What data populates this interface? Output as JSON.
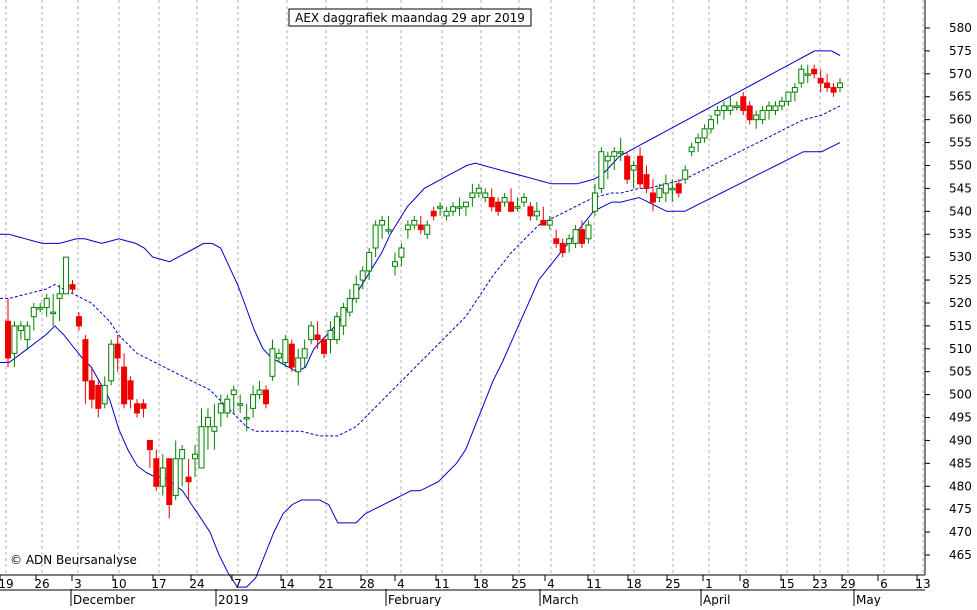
{
  "chart_data": {
    "type": "candlestick",
    "title": "AEX daggrafiek maandag 29 apr 2019",
    "copyright": "© ADN Beursanalyse",
    "y_axis": {
      "side": "right",
      "ylim": [
        460,
        583
      ],
      "ticks": [
        465,
        470,
        475,
        480,
        485,
        490,
        495,
        500,
        505,
        510,
        515,
        520,
        525,
        530,
        535,
        540,
        545,
        550,
        555,
        560,
        565,
        570,
        575,
        580
      ]
    },
    "x_axis": {
      "day_ticks": [
        "19",
        "26",
        "3",
        "10",
        "17",
        "24",
        "7",
        "14",
        "21",
        "28",
        "4",
        "11",
        "18",
        "25",
        "4",
        "11",
        "18",
        "25",
        "1",
        "8",
        "15",
        "23",
        "29",
        "6",
        "13"
      ],
      "month_labels": [
        "December",
        "2019",
        "February",
        "March",
        "April",
        "May"
      ]
    },
    "colors": {
      "up": "#008000",
      "down": "#ee0000",
      "bands": "#0000cc",
      "grid": "#b0b0b0"
    },
    "candles": [
      [
        516,
        521,
        506,
        508
      ],
      [
        509,
        516,
        506,
        515
      ],
      [
        514,
        516,
        512,
        515
      ],
      [
        512,
        516,
        510,
        515
      ],
      [
        517,
        520,
        514,
        519
      ],
      [
        519,
        520,
        518,
        519
      ],
      [
        519,
        522,
        517,
        521
      ],
      [
        518,
        522,
        515,
        518
      ],
      [
        521,
        524,
        516,
        522
      ],
      [
        522,
        529,
        522,
        530
      ],
      [
        524,
        525,
        522,
        523
      ],
      [
        517,
        518,
        514,
        515
      ],
      [
        512,
        513,
        498,
        503
      ],
      [
        503,
        506,
        497,
        499
      ],
      [
        502,
        503,
        495,
        497
      ],
      [
        498,
        504,
        497,
        502
      ],
      [
        503,
        512,
        502,
        511
      ],
      [
        511,
        513,
        505,
        508
      ],
      [
        506,
        509,
        497,
        498
      ],
      [
        503,
        504,
        497,
        499
      ],
      [
        498,
        499,
        495,
        496
      ],
      [
        498,
        499,
        495,
        497
      ],
      [
        490,
        489,
        484,
        488
      ],
      [
        486,
        488,
        479,
        480
      ],
      [
        480,
        487,
        478,
        484
      ],
      [
        486,
        486,
        473,
        476
      ],
      [
        478,
        490,
        477,
        486
      ],
      [
        486,
        489,
        480,
        488
      ],
      [
        482,
        486,
        477,
        481
      ],
      [
        486,
        489,
        482,
        487
      ],
      [
        484,
        497,
        484,
        493
      ],
      [
        493,
        497,
        488,
        495
      ],
      [
        492,
        498,
        488,
        493
      ],
      [
        496,
        500,
        493,
        498
      ],
      [
        496,
        500,
        495,
        499
      ],
      [
        500,
        502,
        496,
        501
      ],
      [
        498,
        500,
        496,
        498
      ],
      [
        495,
        498,
        492,
        495
      ],
      [
        497,
        502,
        495,
        500
      ],
      [
        500,
        503,
        499,
        501
      ],
      [
        501,
        502,
        497,
        498
      ],
      [
        504,
        512,
        503,
        510
      ],
      [
        508,
        510,
        507,
        509
      ],
      [
        507,
        513,
        506,
        512
      ],
      [
        511,
        512,
        505,
        506
      ],
      [
        505,
        510,
        502,
        508
      ],
      [
        508,
        512,
        506,
        510
      ],
      [
        512,
        516,
        511,
        515
      ],
      [
        513,
        516,
        510,
        512
      ],
      [
        512,
        512,
        508,
        509
      ],
      [
        512,
        516,
        509,
        514
      ],
      [
        512,
        518,
        511,
        517
      ],
      [
        515,
        520,
        513,
        519
      ],
      [
        518,
        523,
        517,
        521
      ],
      [
        521,
        526,
        520,
        524
      ],
      [
        525,
        528,
        523,
        527
      ],
      [
        527,
        532,
        525,
        531
      ],
      [
        532,
        538,
        530,
        537
      ],
      [
        537,
        539,
        534,
        538
      ],
      [
        536,
        539,
        535,
        536
      ],
      [
        528,
        531,
        526,
        529
      ],
      [
        530,
        533,
        528,
        532
      ],
      [
        536,
        538,
        534,
        537
      ],
      [
        537,
        539,
        536,
        538
      ],
      [
        537,
        539,
        535,
        536
      ],
      [
        535,
        538,
        534,
        537
      ],
      [
        540,
        541,
        538,
        539
      ],
      [
        541,
        542,
        539,
        541
      ],
      [
        539,
        541,
        538,
        540
      ],
      [
        540,
        542,
        539,
        541
      ],
      [
        541,
        543,
        539,
        541
      ],
      [
        541,
        542,
        539,
        542
      ],
      [
        543,
        546,
        541,
        544
      ],
      [
        544,
        546,
        543,
        545
      ],
      [
        543,
        545,
        542,
        544
      ],
      [
        543,
        545,
        540,
        541
      ],
      [
        542,
        543,
        539,
        540
      ],
      [
        542,
        544,
        541,
        543
      ],
      [
        542,
        545,
        541,
        540
      ],
      [
        541,
        543,
        540,
        541
      ],
      [
        542,
        544,
        541,
        543
      ],
      [
        541,
        542,
        538,
        539
      ],
      [
        539,
        542,
        538,
        540
      ],
      [
        538,
        541,
        537,
        537
      ],
      [
        537,
        539,
        536,
        538
      ],
      [
        534,
        536,
        532,
        533
      ],
      [
        533,
        534,
        530,
        531
      ],
      [
        533,
        535,
        531,
        534
      ],
      [
        533,
        537,
        532,
        536
      ],
      [
        536,
        538,
        532,
        533
      ],
      [
        534,
        538,
        533,
        537
      ],
      [
        540,
        546,
        539,
        544
      ],
      [
        545,
        554,
        544,
        553
      ],
      [
        551,
        553,
        547,
        552
      ],
      [
        552,
        554,
        549,
        553
      ],
      [
        553,
        556,
        551,
        553
      ],
      [
        552,
        553,
        546,
        547
      ],
      [
        549,
        551,
        545,
        550
      ],
      [
        552,
        554,
        545,
        546
      ],
      [
        548,
        550,
        544,
        545
      ],
      [
        544,
        547,
        540,
        542
      ],
      [
        543,
        546,
        542,
        545
      ],
      [
        544,
        548,
        542,
        546
      ],
      [
        545,
        547,
        542,
        545
      ],
      [
        546,
        547,
        543,
        544
      ],
      [
        547,
        550,
        546,
        549
      ],
      [
        553,
        555,
        552,
        554
      ],
      [
        555,
        557,
        553,
        556
      ],
      [
        556,
        559,
        555,
        558
      ],
      [
        558,
        561,
        557,
        560
      ],
      [
        561,
        563,
        559,
        562
      ],
      [
        562,
        564,
        560,
        563
      ],
      [
        562,
        565,
        561,
        563
      ],
      [
        563,
        564,
        562,
        563
      ],
      [
        565,
        566,
        561,
        562
      ],
      [
        563,
        564,
        559,
        560
      ],
      [
        560,
        562,
        558,
        561
      ],
      [
        560,
        563,
        559,
        562
      ],
      [
        562,
        564,
        560,
        563
      ],
      [
        562,
        564,
        561,
        563
      ],
      [
        563,
        565,
        562,
        564
      ],
      [
        564,
        566,
        563,
        566
      ],
      [
        566,
        568,
        564,
        567
      ],
      [
        568,
        572,
        567,
        571
      ],
      [
        570,
        572,
        568,
        570
      ],
      [
        571,
        572,
        569,
        570
      ],
      [
        569,
        571,
        566,
        568
      ],
      [
        568,
        570,
        566,
        567
      ],
      [
        567,
        568,
        565,
        566
      ],
      [
        567,
        569,
        566,
        568
      ]
    ],
    "middle_band": [
      521,
      521,
      521.5,
      522,
      522.5,
      523,
      524,
      523,
      522,
      521,
      520,
      518,
      516,
      513,
      511,
      509,
      508,
      507,
      506,
      505,
      504,
      503,
      502,
      501,
      499,
      497,
      495,
      493,
      492,
      492,
      492,
      492,
      492,
      492,
      491.5,
      491,
      491,
      491,
      492,
      493,
      495,
      497,
      499,
      501,
      503,
      505,
      507,
      509,
      511,
      513,
      515,
      517,
      520,
      523,
      526,
      528.5,
      531,
      533,
      535,
      537,
      538,
      539,
      540,
      541,
      542,
      543,
      543.5,
      544,
      544,
      544.5,
      545,
      545,
      545.5,
      546,
      546.5,
      547,
      548,
      549,
      550,
      551,
      552,
      553,
      554,
      555,
      556,
      557,
      558,
      559,
      560,
      560.5,
      561,
      562,
      563
    ],
    "upper_band": [
      535,
      535,
      534.5,
      534,
      533.5,
      533,
      533,
      533,
      533.5,
      534,
      534,
      533.5,
      533,
      533.5,
      534,
      533.5,
      533,
      532,
      530,
      529.5,
      529,
      530,
      531,
      532,
      533,
      533,
      532,
      528,
      524,
      519,
      514,
      510,
      508,
      507,
      506,
      505,
      506,
      510,
      512,
      514,
      516,
      519,
      522,
      525,
      528,
      531,
      535,
      538,
      541,
      543,
      545,
      546,
      547,
      548,
      549,
      550,
      550.5,
      550,
      549.5,
      549,
      548.5,
      548,
      547.5,
      547,
      546.5,
      546,
      546,
      546,
      546,
      546.5,
      547,
      548,
      550,
      552,
      553,
      554,
      555,
      556,
      557,
      558,
      559,
      560,
      561,
      562,
      563,
      564,
      565,
      566,
      567,
      568,
      569,
      570,
      571,
      572,
      573,
      574,
      575,
      575,
      575,
      574
    ]
  }
}
